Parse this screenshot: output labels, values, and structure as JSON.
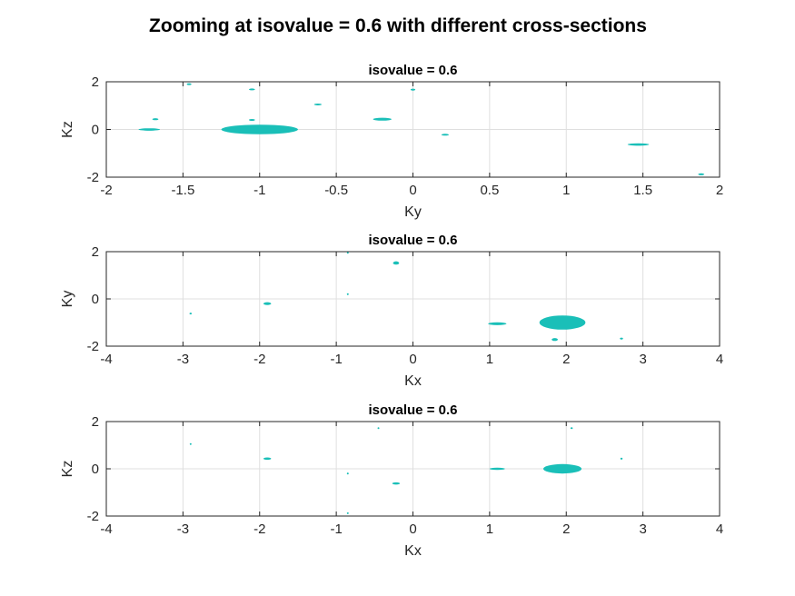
{
  "figure": {
    "title": "Zooming at isovalue = 0.6 with different cross-sections",
    "blob_color": "#1ABFB8"
  },
  "chart_data": [
    {
      "type": "scatter",
      "title": "isovalue = 0.6",
      "xlabel": "Ky",
      "ylabel": "Kz",
      "xlim": [
        -2,
        2
      ],
      "ylim": [
        -2,
        2
      ],
      "xticks": [
        "-2",
        "-1.5",
        "-1",
        "-0.5",
        "0",
        "0.5",
        "1",
        "1.5",
        "2"
      ],
      "yticks": [
        "-2",
        "0",
        "2"
      ],
      "grid": true,
      "blobs": [
        {
          "x": -1.0,
          "y": 0.0,
          "rx": 0.25,
          "ry": 0.2
        },
        {
          "x": -1.72,
          "y": 0.0,
          "rx": 0.07,
          "ry": 0.05
        },
        {
          "x": -1.68,
          "y": 0.43,
          "rx": 0.02,
          "ry": 0.04
        },
        {
          "x": -1.46,
          "y": 1.9,
          "rx": 0.015,
          "ry": 0.03
        },
        {
          "x": -1.05,
          "y": 1.68,
          "rx": 0.02,
          "ry": 0.03
        },
        {
          "x": -1.05,
          "y": 0.4,
          "rx": 0.02,
          "ry": 0.04
        },
        {
          "x": -0.62,
          "y": 1.05,
          "rx": 0.025,
          "ry": 0.03
        },
        {
          "x": -0.2,
          "y": 0.43,
          "rx": 0.06,
          "ry": 0.06
        },
        {
          "x": 0.0,
          "y": 1.67,
          "rx": 0.015,
          "ry": 0.04
        },
        {
          "x": 0.21,
          "y": -0.22,
          "rx": 0.025,
          "ry": 0.03
        },
        {
          "x": 1.47,
          "y": -0.63,
          "rx": 0.07,
          "ry": 0.05
        },
        {
          "x": 1.88,
          "y": -1.88,
          "rx": 0.02,
          "ry": 0.04
        }
      ]
    },
    {
      "type": "scatter",
      "title": "isovalue = 0.6",
      "xlabel": "Kx",
      "ylabel": "Ky",
      "xlim": [
        -4,
        4
      ],
      "ylim": [
        -2,
        2
      ],
      "xticks": [
        "-4",
        "-3",
        "-2",
        "-1",
        "0",
        "1",
        "2",
        "3",
        "4"
      ],
      "yticks": [
        "-2",
        "0",
        "2"
      ],
      "grid": true,
      "blobs": [
        {
          "x": 1.95,
          "y": -1.0,
          "rx": 0.3,
          "ry": 0.3
        },
        {
          "x": 1.1,
          "y": -1.05,
          "rx": 0.12,
          "ry": 0.06
        },
        {
          "x": -1.9,
          "y": -0.2,
          "rx": 0.05,
          "ry": 0.06
        },
        {
          "x": -0.22,
          "y": 1.52,
          "rx": 0.04,
          "ry": 0.07
        },
        {
          "x": 1.85,
          "y": -1.72,
          "rx": 0.04,
          "ry": 0.06
        },
        {
          "x": -2.9,
          "y": -0.62,
          "rx": 0.015,
          "ry": 0.04
        },
        {
          "x": -0.85,
          "y": 1.95,
          "rx": 0.012,
          "ry": 0.03
        },
        {
          "x": -0.85,
          "y": 0.2,
          "rx": 0.012,
          "ry": 0.04
        },
        {
          "x": 2.72,
          "y": -1.68,
          "rx": 0.02,
          "ry": 0.04
        }
      ]
    },
    {
      "type": "scatter",
      "title": "isovalue = 0.6",
      "xlabel": "Kx",
      "ylabel": "Kz",
      "xlim": [
        -4,
        4
      ],
      "ylim": [
        -2,
        2
      ],
      "xticks": [
        "-4",
        "-3",
        "-2",
        "-1",
        "0",
        "1",
        "2",
        "3",
        "4"
      ],
      "yticks": [
        "-2",
        "0",
        "2"
      ],
      "grid": true,
      "blobs": [
        {
          "x": 1.95,
          "y": 0.0,
          "rx": 0.25,
          "ry": 0.2
        },
        {
          "x": 1.1,
          "y": 0.0,
          "rx": 0.1,
          "ry": 0.05
        },
        {
          "x": -1.9,
          "y": 0.43,
          "rx": 0.05,
          "ry": 0.05
        },
        {
          "x": -0.22,
          "y": -0.62,
          "rx": 0.05,
          "ry": 0.05
        },
        {
          "x": -0.85,
          "y": -0.2,
          "rx": 0.012,
          "ry": 0.04
        },
        {
          "x": -0.85,
          "y": -1.88,
          "rx": 0.012,
          "ry": 0.03
        },
        {
          "x": 2.07,
          "y": 1.72,
          "rx": 0.015,
          "ry": 0.03
        },
        {
          "x": 2.72,
          "y": 0.43,
          "rx": 0.015,
          "ry": 0.04
        },
        {
          "x": -2.9,
          "y": 1.05,
          "rx": 0.01,
          "ry": 0.03
        },
        {
          "x": -0.45,
          "y": 1.72,
          "rx": 0.01,
          "ry": 0.03
        }
      ]
    }
  ]
}
